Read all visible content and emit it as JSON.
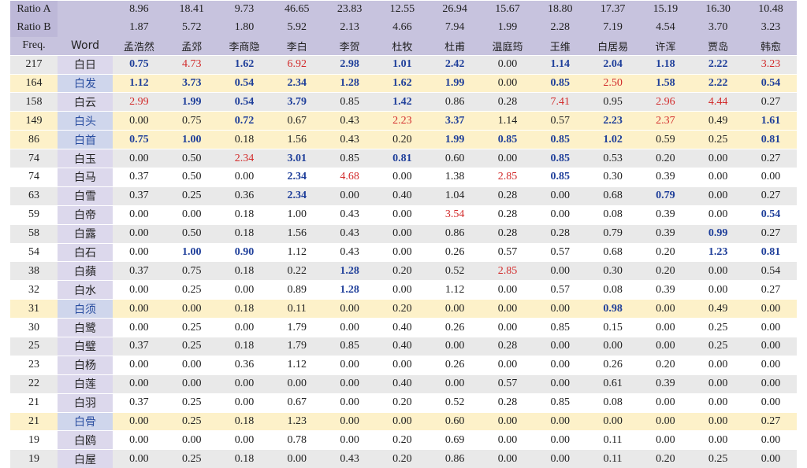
{
  "header": {
    "ratio_a_label": "Ratio A",
    "ratio_b_label": "Ratio B",
    "freq_label": "Freq.",
    "word_label": "Word",
    "poets": [
      "孟浩然",
      "孟郊",
      "李商隐",
      "李白",
      "李贺",
      "杜牧",
      "杜甫",
      "温庭筠",
      "王维",
      "白居易",
      "许浑",
      "贾岛",
      "韩愈"
    ],
    "ratio_a": [
      "8.96",
      "18.41",
      "9.73",
      "46.65",
      "23.83",
      "12.55",
      "26.94",
      "15.67",
      "18.80",
      "17.37",
      "15.19",
      "16.30",
      "10.48"
    ],
    "ratio_b": [
      "1.87",
      "5.72",
      "1.80",
      "5.92",
      "2.13",
      "4.66",
      "7.94",
      "1.99",
      "2.28",
      "7.19",
      "4.54",
      "3.70",
      "3.23"
    ]
  },
  "rows": [
    {
      "freq": "217",
      "word": "白日",
      "row_style": "g",
      "word_hl": false,
      "values": [
        "0.75",
        "4.73",
        "1.62",
        "6.92",
        "2.98",
        "1.01",
        "2.42",
        "0.00",
        "1.14",
        "2.04",
        "1.18",
        "2.22",
        "3.23"
      ],
      "marks": [
        "b",
        "r",
        "b",
        "r",
        "b",
        "b",
        "b",
        "",
        "b",
        "b",
        "b",
        "b",
        "r"
      ]
    },
    {
      "freq": "164",
      "word": "白发",
      "row_style": "y",
      "word_hl": true,
      "values": [
        "1.12",
        "3.73",
        "0.54",
        "2.34",
        "1.28",
        "1.62",
        "1.99",
        "0.00",
        "0.85",
        "2.50",
        "1.58",
        "2.22",
        "0.54"
      ],
      "marks": [
        "b",
        "b",
        "b",
        "b",
        "b",
        "b",
        "b",
        "",
        "b",
        "r",
        "b",
        "b",
        "b"
      ]
    },
    {
      "freq": "158",
      "word": "白云",
      "row_style": "g",
      "word_hl": false,
      "values": [
        "2.99",
        "1.99",
        "0.54",
        "3.79",
        "0.85",
        "1.42",
        "0.86",
        "0.28",
        "7.41",
        "0.95",
        "2.96",
        "4.44",
        "0.27"
      ],
      "marks": [
        "r",
        "b",
        "b",
        "b",
        "",
        "b",
        "",
        "",
        "r",
        "",
        "r",
        "r",
        ""
      ]
    },
    {
      "freq": "149",
      "word": "白头",
      "row_style": "y",
      "word_hl": true,
      "values": [
        "0.00",
        "0.75",
        "0.72",
        "0.67",
        "0.43",
        "2.23",
        "3.37",
        "1.14",
        "0.57",
        "2.23",
        "2.37",
        "0.49",
        "1.61"
      ],
      "marks": [
        "",
        "",
        "b",
        "",
        "",
        "r",
        "b",
        "",
        "",
        "b",
        "r",
        "",
        "b"
      ]
    },
    {
      "freq": "86",
      "word": "白首",
      "row_style": "y",
      "word_hl": true,
      "values": [
        "0.75",
        "1.00",
        "0.18",
        "1.56",
        "0.43",
        "0.20",
        "1.99",
        "0.85",
        "0.85",
        "1.02",
        "0.59",
        "0.25",
        "0.81"
      ],
      "marks": [
        "b",
        "b",
        "",
        "",
        "",
        "",
        "b",
        "b",
        "b",
        "b",
        "",
        "",
        "b"
      ]
    },
    {
      "freq": "74",
      "word": "白玉",
      "row_style": "g",
      "word_hl": false,
      "values": [
        "0.00",
        "0.50",
        "2.34",
        "3.01",
        "0.85",
        "0.81",
        "0.60",
        "0.00",
        "0.85",
        "0.53",
        "0.20",
        "0.00",
        "0.27"
      ],
      "marks": [
        "",
        "",
        "r",
        "b",
        "",
        "b",
        "",
        "",
        "b",
        "",
        "",
        "",
        ""
      ]
    },
    {
      "freq": "74",
      "word": "白马",
      "row_style": "w",
      "word_hl": false,
      "values": [
        "0.37",
        "0.50",
        "0.00",
        "2.34",
        "4.68",
        "0.00",
        "1.38",
        "2.85",
        "0.85",
        "0.30",
        "0.39",
        "0.00",
        "0.00"
      ],
      "marks": [
        "",
        "",
        "",
        "b",
        "r",
        "",
        "",
        "r",
        "b",
        "",
        "",
        "",
        ""
      ]
    },
    {
      "freq": "63",
      "word": "白雪",
      "row_style": "g",
      "word_hl": false,
      "values": [
        "0.37",
        "0.25",
        "0.36",
        "2.34",
        "0.00",
        "0.40",
        "1.04",
        "0.28",
        "0.00",
        "0.68",
        "0.79",
        "0.00",
        "0.27"
      ],
      "marks": [
        "",
        "",
        "",
        "b",
        "",
        "",
        "",
        "",
        "",
        "",
        "b",
        "",
        ""
      ]
    },
    {
      "freq": "59",
      "word": "白帝",
      "row_style": "w",
      "word_hl": false,
      "values": [
        "0.00",
        "0.00",
        "0.18",
        "1.00",
        "0.43",
        "0.00",
        "3.54",
        "0.28",
        "0.00",
        "0.08",
        "0.39",
        "0.00",
        "0.54"
      ],
      "marks": [
        "",
        "",
        "",
        "",
        "",
        "",
        "r",
        "",
        "",
        "",
        "",
        "",
        "b"
      ]
    },
    {
      "freq": "58",
      "word": "白露",
      "row_style": "g",
      "word_hl": false,
      "values": [
        "0.00",
        "0.50",
        "0.18",
        "1.56",
        "0.43",
        "0.00",
        "0.86",
        "0.28",
        "0.28",
        "0.79",
        "0.39",
        "0.99",
        "0.27"
      ],
      "marks": [
        "",
        "",
        "",
        "",
        "",
        "",
        "",
        "",
        "",
        "",
        "",
        "b",
        ""
      ]
    },
    {
      "freq": "54",
      "word": "白石",
      "row_style": "w",
      "word_hl": false,
      "values": [
        "0.00",
        "1.00",
        "0.90",
        "1.12",
        "0.43",
        "0.00",
        "0.26",
        "0.57",
        "0.57",
        "0.68",
        "0.20",
        "1.23",
        "0.81"
      ],
      "marks": [
        "",
        "b",
        "b",
        "",
        "",
        "",
        "",
        "",
        "",
        "",
        "",
        "b",
        "b"
      ]
    },
    {
      "freq": "38",
      "word": "白蘋",
      "row_style": "g",
      "word_hl": false,
      "values": [
        "0.37",
        "0.75",
        "0.18",
        "0.22",
        "1.28",
        "0.20",
        "0.52",
        "2.85",
        "0.00",
        "0.30",
        "0.20",
        "0.00",
        "0.54"
      ],
      "marks": [
        "",
        "",
        "",
        "",
        "b",
        "",
        "",
        "r",
        "",
        "",
        "",
        "",
        ""
      ]
    },
    {
      "freq": "32",
      "word": "白水",
      "row_style": "w",
      "word_hl": false,
      "values": [
        "0.00",
        "0.25",
        "0.00",
        "0.89",
        "1.28",
        "0.00",
        "1.12",
        "0.00",
        "0.57",
        "0.08",
        "0.39",
        "0.00",
        "0.27"
      ],
      "marks": [
        "",
        "",
        "",
        "",
        "b",
        "",
        "",
        "",
        "",
        "",
        "",
        "",
        ""
      ]
    },
    {
      "freq": "31",
      "word": "白须",
      "row_style": "y",
      "word_hl": true,
      "values": [
        "0.00",
        "0.00",
        "0.18",
        "0.11",
        "0.00",
        "0.20",
        "0.00",
        "0.00",
        "0.00",
        "0.98",
        "0.00",
        "0.49",
        "0.00"
      ],
      "marks": [
        "",
        "",
        "",
        "",
        "",
        "",
        "",
        "",
        "",
        "b",
        "",
        "",
        ""
      ]
    },
    {
      "freq": "30",
      "word": "白鹭",
      "row_style": "w",
      "word_hl": false,
      "values": [
        "0.00",
        "0.25",
        "0.00",
        "1.79",
        "0.00",
        "0.40",
        "0.26",
        "0.00",
        "0.85",
        "0.15",
        "0.00",
        "0.25",
        "0.00"
      ],
      "marks": [
        "",
        "",
        "",
        "",
        "",
        "",
        "",
        "",
        "",
        "",
        "",
        "",
        ""
      ]
    },
    {
      "freq": "25",
      "word": "白璧",
      "row_style": "g",
      "word_hl": false,
      "values": [
        "0.37",
        "0.25",
        "0.18",
        "1.79",
        "0.85",
        "0.40",
        "0.00",
        "0.28",
        "0.00",
        "0.00",
        "0.00",
        "0.25",
        "0.00"
      ],
      "marks": [
        "",
        "",
        "",
        "",
        "",
        "",
        "",
        "",
        "",
        "",
        "",
        "",
        ""
      ]
    },
    {
      "freq": "23",
      "word": "白杨",
      "row_style": "w",
      "word_hl": false,
      "values": [
        "0.00",
        "0.00",
        "0.36",
        "1.12",
        "0.00",
        "0.00",
        "0.26",
        "0.00",
        "0.00",
        "0.26",
        "0.20",
        "0.00",
        "0.00"
      ],
      "marks": [
        "",
        "",
        "",
        "",
        "",
        "",
        "",
        "",
        "",
        "",
        "",
        "",
        ""
      ]
    },
    {
      "freq": "22",
      "word": "白莲",
      "row_style": "g",
      "word_hl": false,
      "values": [
        "0.00",
        "0.00",
        "0.00",
        "0.00",
        "0.00",
        "0.40",
        "0.00",
        "0.57",
        "0.00",
        "0.61",
        "0.39",
        "0.00",
        "0.00"
      ],
      "marks": [
        "",
        "",
        "",
        "",
        "",
        "",
        "",
        "",
        "",
        "",
        "",
        "",
        ""
      ]
    },
    {
      "freq": "21",
      "word": "白羽",
      "row_style": "w",
      "word_hl": false,
      "values": [
        "0.37",
        "0.25",
        "0.00",
        "0.67",
        "0.00",
        "0.20",
        "0.52",
        "0.28",
        "0.85",
        "0.08",
        "0.00",
        "0.00",
        "0.00"
      ],
      "marks": [
        "",
        "",
        "",
        "",
        "",
        "",
        "",
        "",
        "",
        "",
        "",
        "",
        ""
      ]
    },
    {
      "freq": "21",
      "word": "白骨",
      "row_style": "y",
      "word_hl": true,
      "values": [
        "0.00",
        "0.25",
        "0.18",
        "1.23",
        "0.00",
        "0.00",
        "0.60",
        "0.00",
        "0.00",
        "0.00",
        "0.00",
        "0.00",
        "0.27"
      ],
      "marks": [
        "",
        "",
        "",
        "",
        "",
        "",
        "",
        "",
        "",
        "",
        "",
        "",
        ""
      ]
    },
    {
      "freq": "19",
      "word": "白鸥",
      "row_style": "w",
      "word_hl": false,
      "values": [
        "0.00",
        "0.00",
        "0.00",
        "0.78",
        "0.00",
        "0.20",
        "0.69",
        "0.00",
        "0.00",
        "0.11",
        "0.00",
        "0.00",
        "0.00"
      ],
      "marks": [
        "",
        "",
        "",
        "",
        "",
        "",
        "",
        "",
        "",
        "",
        "",
        "",
        ""
      ]
    },
    {
      "freq": "19",
      "word": "白屋",
      "row_style": "g",
      "word_hl": false,
      "values": [
        "0.00",
        "0.25",
        "0.18",
        "0.00",
        "0.43",
        "0.20",
        "0.86",
        "0.00",
        "0.00",
        "0.11",
        "0.20",
        "0.25",
        "0.00"
      ],
      "marks": [
        "",
        "",
        "",
        "",
        "",
        "",
        "",
        "",
        "",
        "",
        "",
        "",
        ""
      ]
    }
  ],
  "colors": {
    "high": "#1f3f9a",
    "low": "#d22b2b",
    "header": "#c7c3de",
    "gray_row": "#e9e9e9",
    "yellow_row": "#fdf1c9"
  }
}
